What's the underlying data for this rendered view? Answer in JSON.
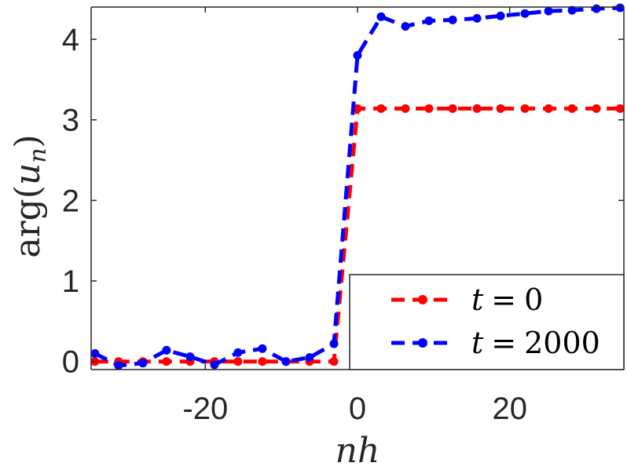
{
  "chart_data": {
    "type": "line",
    "xlabel": "nh",
    "ylabel": "arg(u_n)",
    "ylabel_parts": {
      "func": "arg",
      "open": "(",
      "var": "u",
      "sub": "n",
      "close": ")"
    },
    "xlim": [
      -35,
      35
    ],
    "ylim": [
      -0.1,
      4.4
    ],
    "xticks": [
      -20,
      0,
      20
    ],
    "yticks": [
      0,
      1,
      2,
      3,
      4
    ],
    "xtick_labels": [
      "-20",
      "0",
      "20"
    ],
    "ytick_labels": [
      "0",
      "1",
      "2",
      "3",
      "4"
    ],
    "grid": false,
    "legend_position": "bottom-right",
    "series": [
      {
        "name": "t = 0",
        "legend_lhs": "t",
        "legend_op": "=",
        "legend_rhs": "0",
        "color": "#ff0000",
        "x": [
          -34.5,
          -31.4,
          -28.2,
          -25.1,
          -22.0,
          -18.8,
          -15.7,
          -12.5,
          -9.4,
          -6.3,
          -3.1,
          0.0,
          3.1,
          6.3,
          9.4,
          12.5,
          15.7,
          18.8,
          22.0,
          25.1,
          28.2,
          31.4,
          34.5
        ],
        "y": [
          0,
          0,
          0,
          0,
          0,
          0,
          0,
          0,
          0,
          0,
          0,
          3.14,
          3.14,
          3.14,
          3.14,
          3.14,
          3.14,
          3.14,
          3.14,
          3.14,
          3.14,
          3.14,
          3.14
        ]
      },
      {
        "name": "t = 2000",
        "legend_lhs": "t",
        "legend_op": "=",
        "legend_rhs": "2000",
        "color": "#0000ff",
        "x": [
          -34.5,
          -31.4,
          -28.2,
          -25.1,
          -22.0,
          -18.8,
          -15.7,
          -12.5,
          -9.4,
          -6.3,
          -3.1,
          0.0,
          3.1,
          6.3,
          9.4,
          12.5,
          15.7,
          18.8,
          22.0,
          25.1,
          28.2,
          31.4,
          34.5
        ],
        "y": [
          0.1,
          -0.05,
          -0.02,
          0.14,
          0.06,
          -0.04,
          0.11,
          0.16,
          0.0,
          0.05,
          0.22,
          3.8,
          4.28,
          4.16,
          4.23,
          4.24,
          4.26,
          4.29,
          4.32,
          4.35,
          4.36,
          4.38,
          4.39
        ]
      }
    ]
  }
}
